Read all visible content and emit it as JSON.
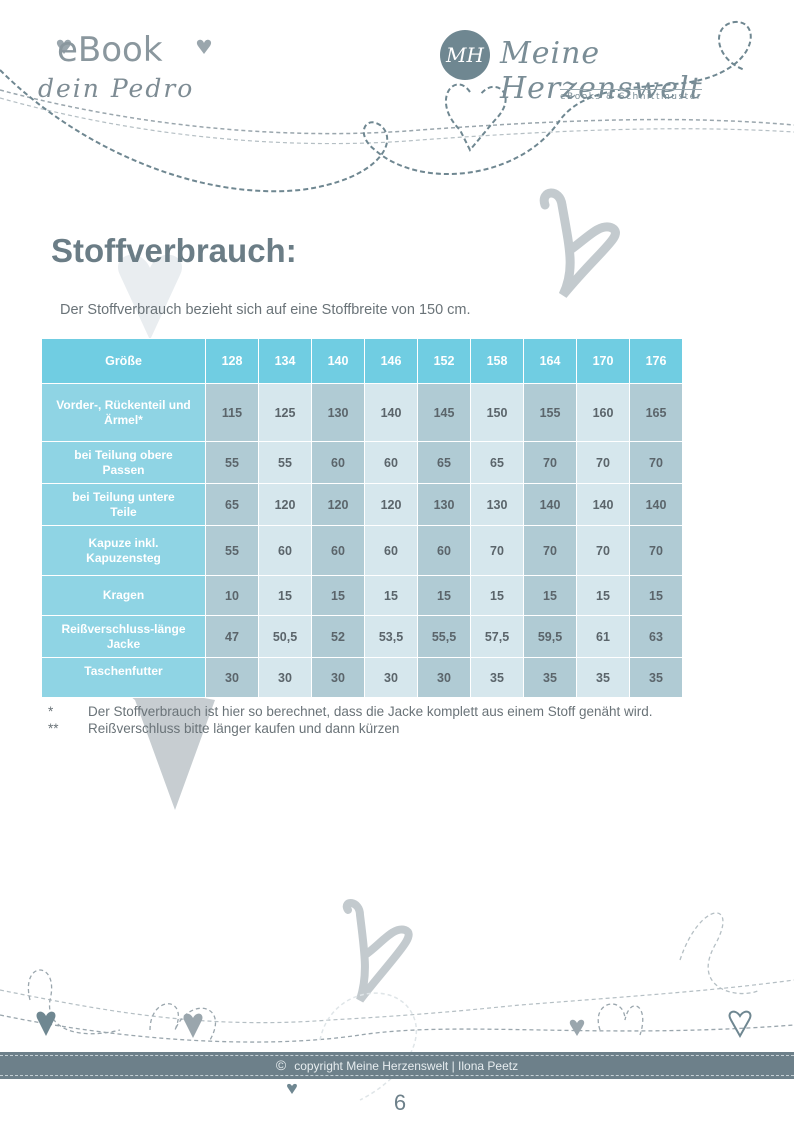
{
  "header": {
    "ebook_label": "eBook",
    "ebook_subtitle": "dein Pedro",
    "logo_initials": "MH",
    "brand_name": "Meine Herzenswelt",
    "brand_tagline": "eBooks & Schnittmuster"
  },
  "section": {
    "title": "Stoffverbrauch:",
    "intro": "Der Stoffverbrauch bezieht sich auf eine Stoffbreite von 150 cm."
  },
  "table": {
    "header_label": "Größe",
    "sizes": [
      "128",
      "134",
      "140",
      "146",
      "152",
      "158",
      "164",
      "170",
      "176"
    ],
    "rows": [
      {
        "label": "Vorder-, Rückenteil und Ärmel*",
        "values": [
          "115",
          "125",
          "130",
          "140",
          "145",
          "150",
          "155",
          "160",
          "165"
        ]
      },
      {
        "label": "bei Teilung obere Passen",
        "values": [
          "55",
          "55",
          "60",
          "60",
          "65",
          "65",
          "70",
          "70",
          "70"
        ]
      },
      {
        "label": "bei Teilung untere Teile",
        "values": [
          "65",
          "120",
          "120",
          "120",
          "130",
          "130",
          "140",
          "140",
          "140"
        ]
      },
      {
        "label": "Kapuze inkl. Kapuzensteg",
        "values": [
          "55",
          "60",
          "60",
          "60",
          "60",
          "70",
          "70",
          "70",
          "70"
        ]
      },
      {
        "label": "Kragen",
        "values": [
          "10",
          "15",
          "15",
          "15",
          "15",
          "15",
          "15",
          "15",
          "15"
        ]
      },
      {
        "label": "Reißverschluss-länge Jacke",
        "values": [
          "47",
          "50,5",
          "52",
          "53,5",
          "55,5",
          "57,5",
          "59,5",
          "61",
          "63"
        ]
      },
      {
        "label": "Taschenfutter",
        "values": [
          "30",
          "30",
          "30",
          "30",
          "30",
          "35",
          "35",
          "35",
          "35"
        ]
      }
    ]
  },
  "notes": [
    {
      "marker": "*",
      "text": "Der Stoffverbrauch ist hier so berechnet, dass die Jacke komplett aus einem Stoff genäht wird."
    },
    {
      "marker": "**",
      "text": "Reißverschluss bitte länger kaufen und dann kürzen"
    }
  ],
  "footer": {
    "copyright": "copyright Meine Herzenswelt | Ilona Peetz",
    "page_number": "6"
  },
  "colors": {
    "table_header": "#70cde2",
    "row_header": "#8fd4e4",
    "cell_dark": "#b0cbd4",
    "cell_light": "#d6e7ed",
    "footer_band": "#6d808a"
  }
}
